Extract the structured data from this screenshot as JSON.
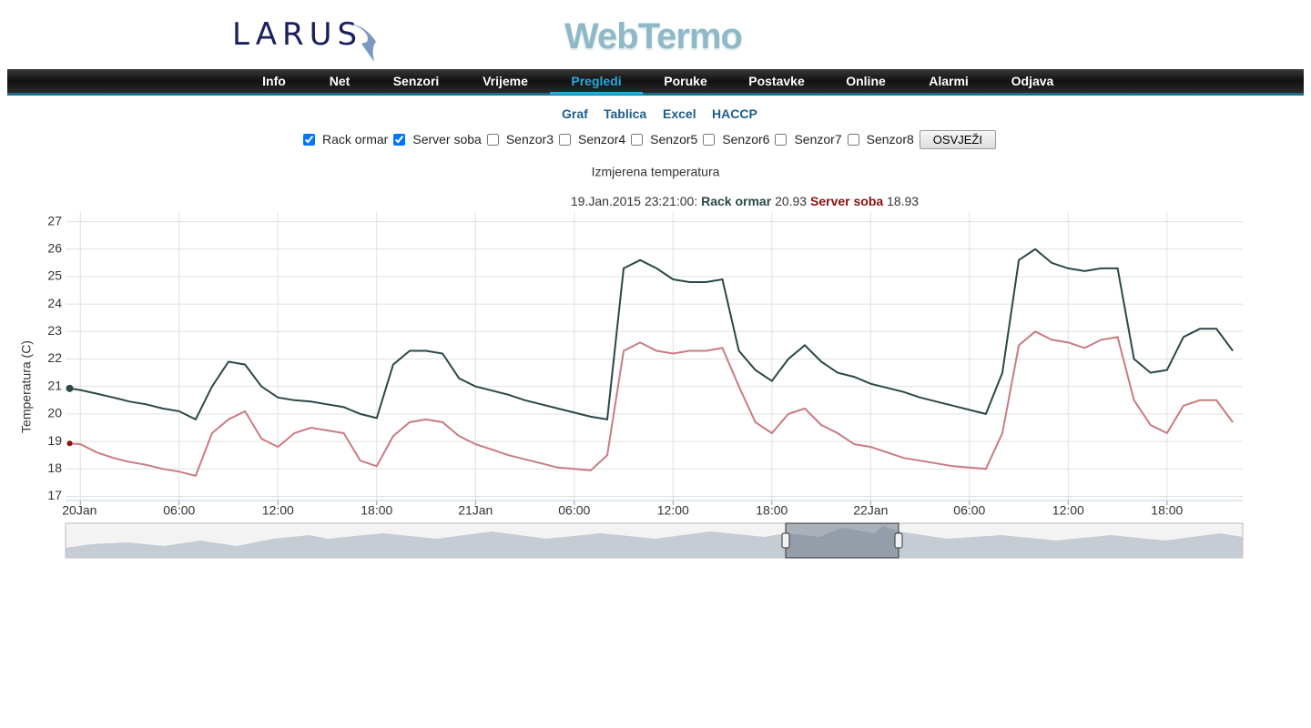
{
  "header": {
    "logo": "LARUS",
    "title": "WebTermo"
  },
  "nav": [
    "Info",
    "Net",
    "Senzori",
    "Vrijeme",
    "Pregledi",
    "Poruke",
    "Postavke",
    "Online",
    "Alarmi",
    "Odjava"
  ],
  "subnav": [
    "Graf",
    "Tablica",
    "Excel",
    "HACCP"
  ],
  "sensors": [
    {
      "label": "Rack ormar",
      "checked": true
    },
    {
      "label": "Server soba",
      "checked": true
    },
    {
      "label": "Senzor3",
      "checked": false
    },
    {
      "label": "Senzor4",
      "checked": false
    },
    {
      "label": "Senzor5",
      "checked": false
    },
    {
      "label": "Senzor6",
      "checked": false
    },
    {
      "label": "Senzor7",
      "checked": false
    },
    {
      "label": "Senzor8",
      "checked": false
    }
  ],
  "button": "OSVJEŽI",
  "chart_data": {
    "type": "line",
    "title": "Izmjerena temperatura",
    "y_label": "Temperatura (C)",
    "tooltip_time": "19.Jan.2015 23:21:00",
    "x": [
      "2015-01-19 23:21",
      "2015-01-20 00:00",
      "2015-01-20 01:00",
      "2015-01-20 02:00",
      "2015-01-20 03:00",
      "2015-01-20 04:00",
      "2015-01-20 05:00",
      "2015-01-20 06:00",
      "2015-01-20 07:00",
      "2015-01-20 08:00",
      "2015-01-20 09:00",
      "2015-01-20 10:00",
      "2015-01-20 11:00",
      "2015-01-20 12:00",
      "2015-01-20 13:00",
      "2015-01-20 14:00",
      "2015-01-20 15:00",
      "2015-01-20 16:00",
      "2015-01-20 17:00",
      "2015-01-20 18:00",
      "2015-01-20 19:00",
      "2015-01-20 20:00",
      "2015-01-20 21:00",
      "2015-01-20 22:00",
      "2015-01-20 23:00",
      "2015-01-21 00:00",
      "2015-01-21 01:00",
      "2015-01-21 02:00",
      "2015-01-21 03:00",
      "2015-01-21 04:00",
      "2015-01-21 05:00",
      "2015-01-21 06:00",
      "2015-01-21 07:00",
      "2015-01-21 08:00",
      "2015-01-21 09:00",
      "2015-01-21 10:00",
      "2015-01-21 11:00",
      "2015-01-21 12:00",
      "2015-01-21 13:00",
      "2015-01-21 14:00",
      "2015-01-21 15:00",
      "2015-01-21 16:00",
      "2015-01-21 17:00",
      "2015-01-21 18:00",
      "2015-01-21 19:00",
      "2015-01-21 20:00",
      "2015-01-21 21:00",
      "2015-01-21 22:00",
      "2015-01-21 23:00",
      "2015-01-22 00:00",
      "2015-01-22 01:00",
      "2015-01-22 02:00",
      "2015-01-22 03:00",
      "2015-01-22 04:00",
      "2015-01-22 05:00",
      "2015-01-22 06:00",
      "2015-01-22 07:00",
      "2015-01-22 08:00",
      "2015-01-22 09:00",
      "2015-01-22 10:00",
      "2015-01-22 11:00",
      "2015-01-22 12:00",
      "2015-01-22 13:00",
      "2015-01-22 14:00",
      "2015-01-22 15:00",
      "2015-01-22 16:00",
      "2015-01-22 17:00",
      "2015-01-22 18:00",
      "2015-01-22 19:00",
      "2015-01-22 20:00",
      "2015-01-22 21:00",
      "2015-01-22 22:00"
    ],
    "series": [
      {
        "name": "Rack ormar",
        "color": "#2b4747",
        "values": [
          20.93,
          20.87,
          20.74,
          20.6,
          20.45,
          20.35,
          20.2,
          20.1,
          19.8,
          21.0,
          21.9,
          21.8,
          21.0,
          20.6,
          20.5,
          20.45,
          20.35,
          20.25,
          20.0,
          19.85,
          21.8,
          22.3,
          22.3,
          22.2,
          21.3,
          21.0,
          20.85,
          20.7,
          20.5,
          20.35,
          20.2,
          20.05,
          19.9,
          19.8,
          25.3,
          25.6,
          25.3,
          24.9,
          24.8,
          24.8,
          24.9,
          22.3,
          21.6,
          21.2,
          22.0,
          22.5,
          21.9,
          21.5,
          21.35,
          21.1,
          20.95,
          20.8,
          20.6,
          20.45,
          20.3,
          20.15,
          20.0,
          21.5,
          25.6,
          26.0,
          25.5,
          25.3,
          25.2,
          25.3,
          25.3,
          22.0,
          21.5,
          21.6,
          22.8,
          23.1,
          23.1,
          22.3
        ]
      },
      {
        "name": "Server soba",
        "color": "#c97b82",
        "values": [
          18.93,
          18.9,
          18.6,
          18.4,
          18.25,
          18.15,
          18.0,
          17.9,
          17.75,
          19.3,
          19.8,
          20.1,
          19.1,
          18.8,
          19.3,
          19.5,
          19.4,
          19.3,
          18.3,
          18.1,
          19.2,
          19.7,
          19.8,
          19.7,
          19.2,
          18.9,
          18.7,
          18.5,
          18.35,
          18.2,
          18.05,
          18.0,
          17.95,
          18.5,
          22.3,
          22.6,
          22.3,
          22.2,
          22.3,
          22.3,
          22.4,
          21.0,
          19.7,
          19.3,
          20.0,
          20.2,
          19.6,
          19.3,
          18.9,
          18.8,
          18.6,
          18.4,
          18.3,
          18.2,
          18.1,
          18.05,
          18.0,
          19.3,
          22.5,
          23.0,
          22.7,
          22.6,
          22.4,
          22.7,
          22.8,
          20.5,
          19.6,
          19.3,
          20.3,
          20.5,
          20.5,
          19.7
        ]
      }
    ],
    "xlim": [
      "2015-01-19 23:06",
      "2015-01-22 22:36"
    ],
    "xticks": [
      {
        "value": "2015-01-20 00:00",
        "label": "20Jan"
      },
      {
        "value": "2015-01-20 06:00",
        "label": "06:00"
      },
      {
        "value": "2015-01-20 12:00",
        "label": "12:00"
      },
      {
        "value": "2015-01-20 18:00",
        "label": "18:00"
      },
      {
        "value": "2015-01-21 00:00",
        "label": "21Jan"
      },
      {
        "value": "2015-01-21 06:00",
        "label": "06:00"
      },
      {
        "value": "2015-01-21 12:00",
        "label": "12:00"
      },
      {
        "value": "2015-01-21 18:00",
        "label": "18:00"
      },
      {
        "value": "2015-01-22 00:00",
        "label": "22Jan"
      },
      {
        "value": "2015-01-22 06:00",
        "label": "06:00"
      },
      {
        "value": "2015-01-22 12:00",
        "label": "12:00"
      },
      {
        "value": "2015-01-22 18:00",
        "label": "18:00"
      }
    ],
    "ylim": [
      16.85,
      27.35
    ],
    "yticks": [
      17,
      18,
      19,
      20,
      21,
      22,
      23,
      24,
      25,
      26,
      27
    ],
    "grid": true
  }
}
